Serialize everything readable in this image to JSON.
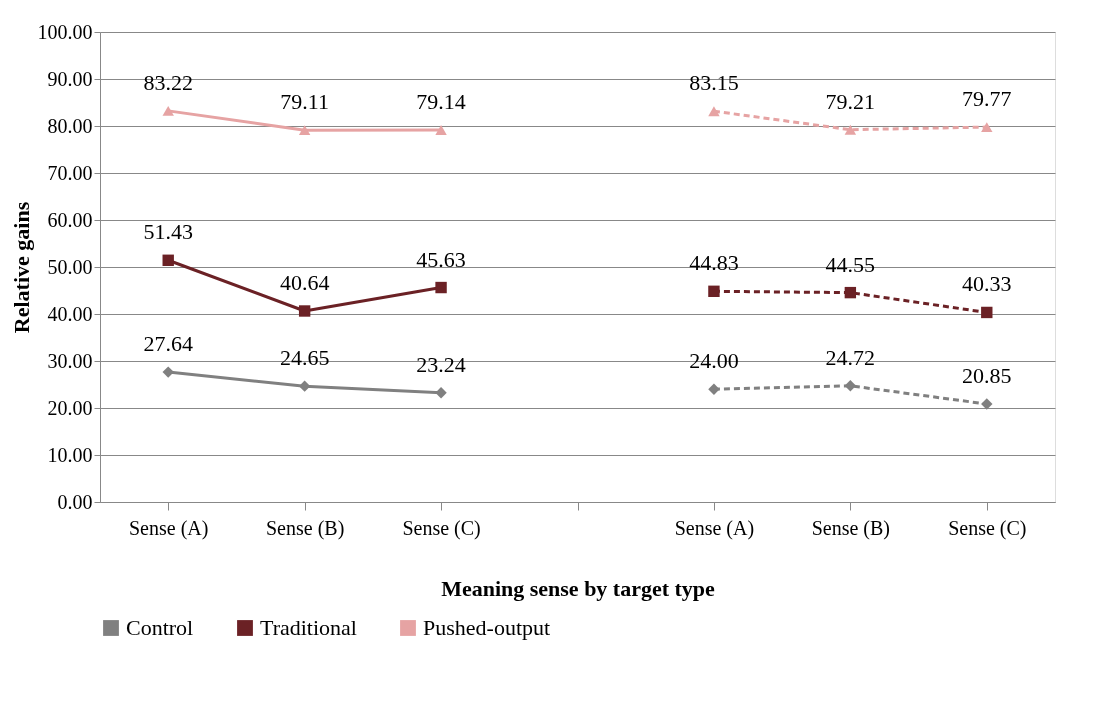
{
  "chart_data": {
    "type": "line",
    "xlabel": "Meaning sense by target type",
    "ylabel": "Relative gains",
    "categories": [
      "Sense (A)",
      "Sense (B)",
      "Sense (C)",
      null,
      "Sense (A)",
      "Sense (B)",
      "Sense (C)"
    ],
    "series": [
      {
        "name": "Control",
        "color": "#808080",
        "marker": "diamond",
        "line_style": "solid",
        "values": [
          27.64,
          24.65,
          23.24,
          null,
          null,
          null,
          null
        ],
        "value_labels": [
          "27.64",
          "24.65",
          "23.24",
          null,
          null,
          null,
          null
        ]
      },
      {
        "name": "Traditional",
        "color": "#6b2125",
        "marker": "square",
        "line_style": "solid",
        "values": [
          51.43,
          40.64,
          45.63,
          null,
          null,
          null,
          null
        ],
        "value_labels": [
          "51.43",
          "40.64",
          "45.63",
          null,
          null,
          null,
          null
        ]
      },
      {
        "name": "Pushed-output",
        "color": "#e6a3a3",
        "marker": "triangle",
        "line_style": "solid",
        "values": [
          83.22,
          79.11,
          79.14,
          null,
          null,
          null,
          null
        ],
        "value_labels": [
          "83.22",
          "79.11",
          "79.14",
          null,
          null,
          null,
          null
        ]
      },
      {
        "color": "#808080",
        "marker": "diamond",
        "line_style": "dashed",
        "values": [
          null,
          null,
          null,
          null,
          24.0,
          24.72,
          20.85
        ],
        "value_labels": [
          null,
          null,
          null,
          null,
          "24.00",
          "24.72",
          "20.85"
        ]
      },
      {
        "color": "#6b2125",
        "marker": "square",
        "line_style": "dashed",
        "values": [
          null,
          null,
          null,
          null,
          44.83,
          44.55,
          40.33
        ],
        "value_labels": [
          null,
          null,
          null,
          null,
          "44.83",
          "44.55",
          "40.33"
        ]
      },
      {
        "color": "#e6a3a3",
        "marker": "triangle",
        "line_style": "dashed",
        "values": [
          null,
          null,
          null,
          null,
          83.15,
          79.21,
          79.77
        ],
        "value_labels": [
          null,
          null,
          null,
          null,
          "83.15",
          "79.21",
          "79.77"
        ]
      }
    ],
    "ylim": [
      0,
      100
    ],
    "yticks": [
      {
        "value": 0,
        "label": "0.00"
      },
      {
        "value": 10,
        "label": "10.00"
      },
      {
        "value": 20,
        "label": "20.00"
      },
      {
        "value": 30,
        "label": "30.00"
      },
      {
        "value": 40,
        "label": "40.00"
      },
      {
        "value": 50,
        "label": "50.00"
      },
      {
        "value": 60,
        "label": "60.00"
      },
      {
        "value": 70,
        "label": "70.00"
      },
      {
        "value": 80,
        "label": "80.00"
      },
      {
        "value": 90,
        "label": "90.00"
      },
      {
        "value": 100,
        "label": "100.00"
      }
    ],
    "grid": "y",
    "legend": "bottom"
  }
}
